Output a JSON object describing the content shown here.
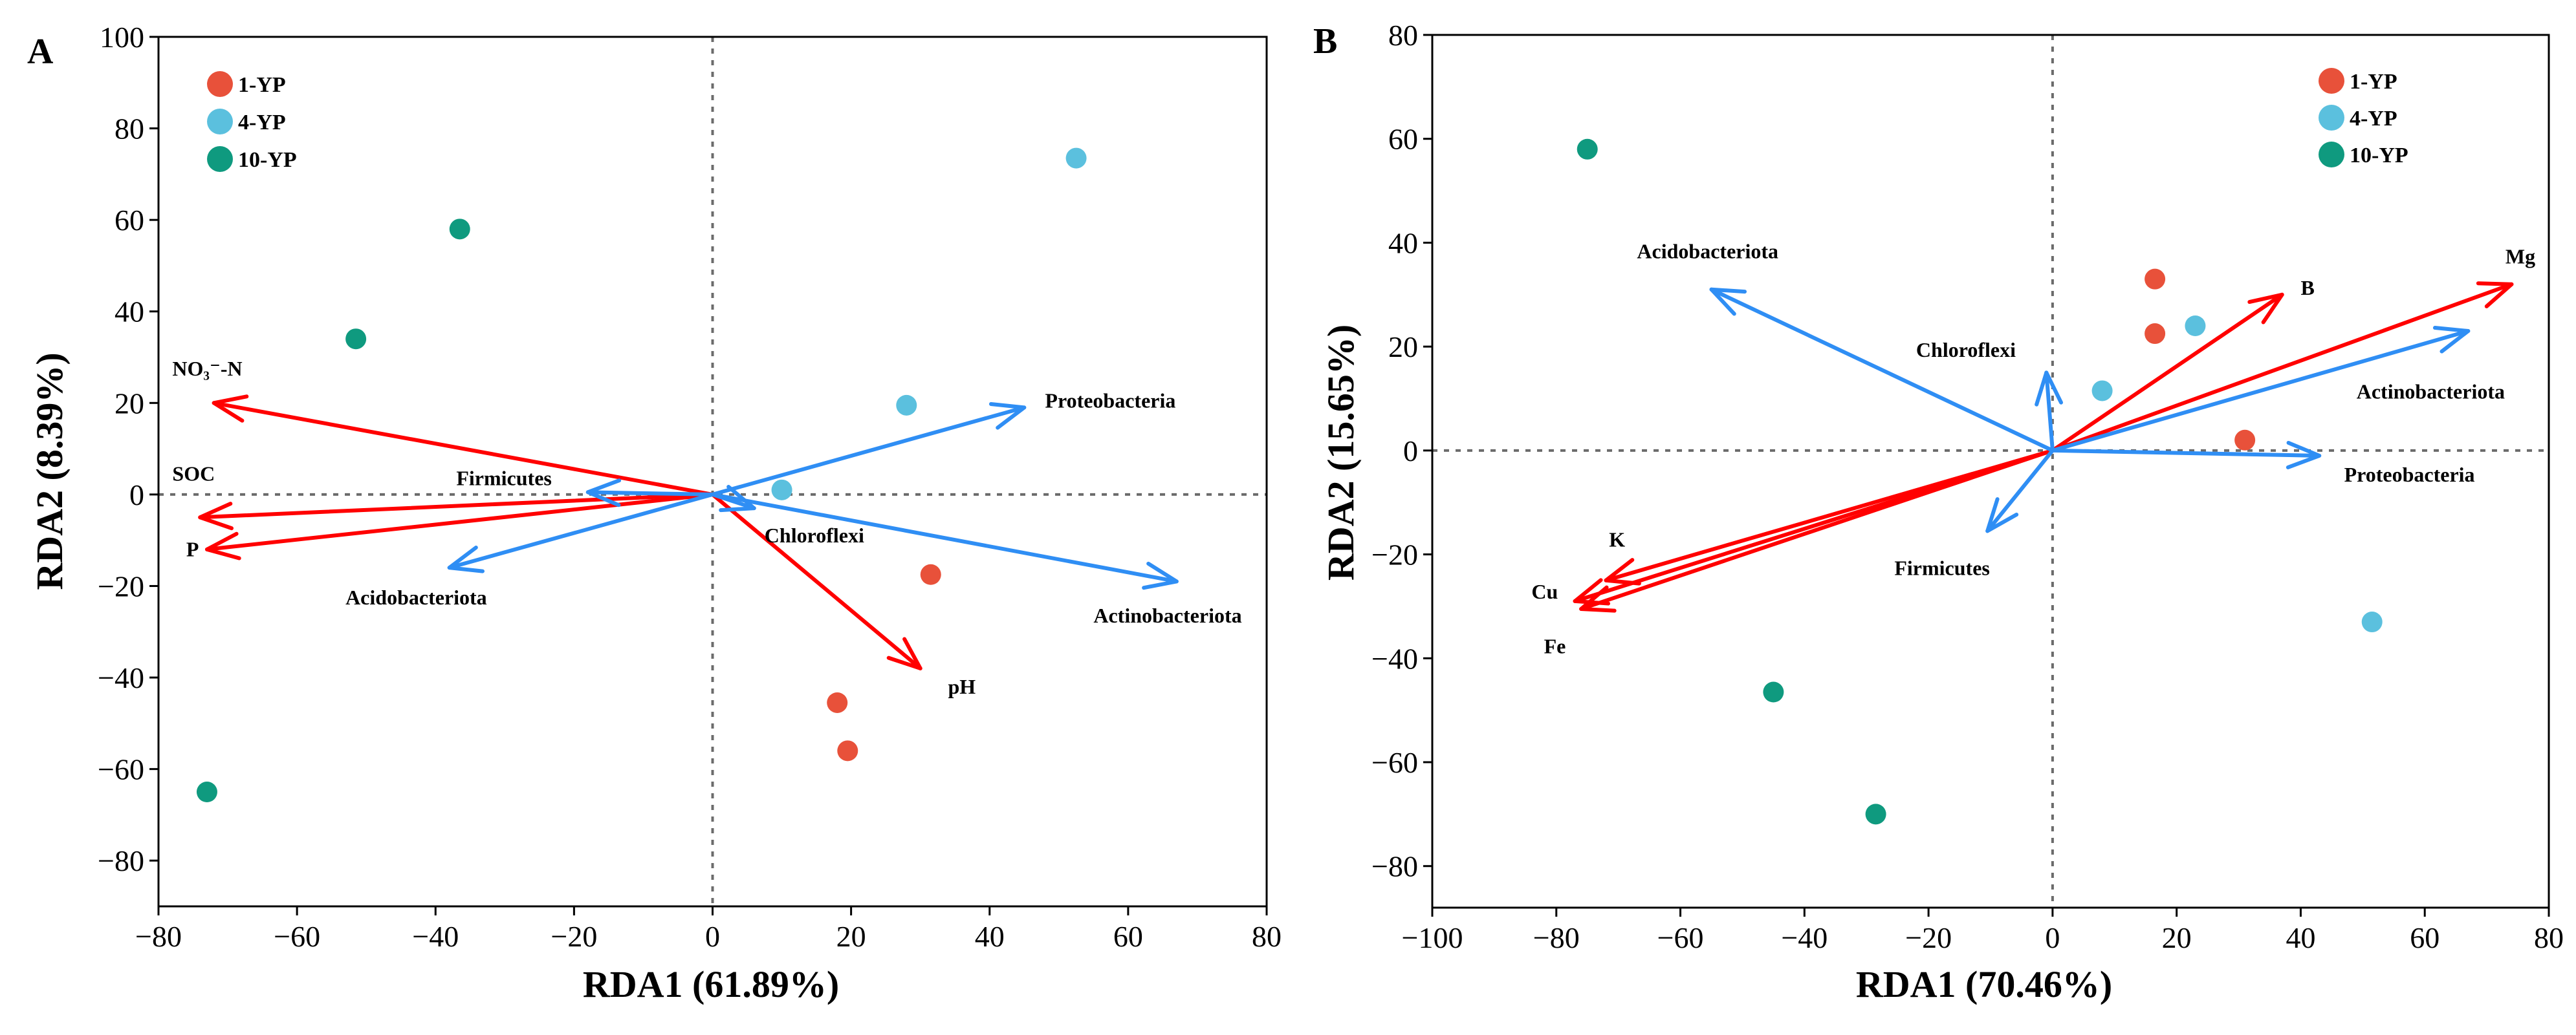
{
  "chart_data": [
    {
      "type": "scatter",
      "panel_label": "A",
      "xlabel": "RDA1 (61.89%)",
      "ylabel": "RDA2 (8.39%)",
      "xlim": [
        -80,
        80
      ],
      "ylim": [
        -90,
        100
      ],
      "xticks": [
        -80,
        -60,
        -40,
        -20,
        0,
        20,
        40,
        60,
        80
      ],
      "yticks": [
        -80,
        -60,
        -40,
        -20,
        0,
        20,
        40,
        60,
        80,
        100
      ],
      "legend_position": "top-left",
      "series": [
        {
          "name": "1-YP",
          "color": "#e8513a",
          "points": [
            [
              31.5,
              -17.5
            ],
            [
              18,
              -45.5
            ],
            [
              19.5,
              -56
            ]
          ]
        },
        {
          "name": "4-YP",
          "color": "#5bc0de",
          "points": [
            [
              52.5,
              73.5
            ],
            [
              28,
              19.5
            ],
            [
              10,
              1
            ]
          ]
        },
        {
          "name": "10-YP",
          "color": "#0f9a7f",
          "points": [
            [
              -36.5,
              58
            ],
            [
              -51.5,
              34
            ],
            [
              -73,
              -65
            ]
          ]
        }
      ],
      "vectors": [
        {
          "label": "NO₃⁻-N",
          "color": "#ff0000",
          "x": -72,
          "y": 20
        },
        {
          "label": "SOC",
          "color": "#ff0000",
          "x": -74,
          "y": -5
        },
        {
          "label": "P",
          "color": "#ff0000",
          "x": -73,
          "y": -12
        },
        {
          "label": "pH",
          "color": "#ff0000",
          "x": 30,
          "y": -38
        },
        {
          "label": "Proteobacteria",
          "color": "#2f8ef4",
          "x": 45,
          "y": 19
        },
        {
          "label": "Firmicutes",
          "color": "#2f8ef4",
          "x": -18,
          "y": 0.5
        },
        {
          "label": "Chloroflexi",
          "color": "#2f8ef4",
          "x": 6,
          "y": -3
        },
        {
          "label": "Acidobacteriota",
          "color": "#2f8ef4",
          "x": -38,
          "y": -16
        },
        {
          "label": "Actinobacteriota",
          "color": "#2f8ef4",
          "x": 67,
          "y": -19
        }
      ]
    },
    {
      "type": "scatter",
      "panel_label": "B",
      "xlabel": "RDA1 (70.46%)",
      "ylabel": "RDA2 (15.65%)",
      "xlim": [
        -100,
        80
      ],
      "ylim": [
        -88,
        80
      ],
      "xticks": [
        -100,
        -80,
        -60,
        -40,
        -20,
        0,
        20,
        40,
        60,
        80
      ],
      "yticks": [
        -80,
        -60,
        -40,
        -20,
        0,
        20,
        40,
        60,
        80
      ],
      "legend_position": "top-right",
      "series": [
        {
          "name": "1-YP",
          "color": "#e8513a",
          "points": [
            [
              16.5,
              33
            ],
            [
              16.5,
              22.5
            ],
            [
              31,
              2
            ]
          ]
        },
        {
          "name": "4-YP",
          "color": "#5bc0de",
          "points": [
            [
              23,
              24
            ],
            [
              8,
              11.5
            ],
            [
              51.5,
              -33
            ]
          ]
        },
        {
          "name": "10-YP",
          "color": "#0f9a7f",
          "points": [
            [
              -75,
              58
            ],
            [
              -45,
              -46.5
            ],
            [
              -28.5,
              -70
            ]
          ]
        }
      ],
      "vectors": [
        {
          "label": "Mg",
          "color": "#ff0000",
          "x": 74,
          "y": 32
        },
        {
          "label": "B",
          "color": "#ff0000",
          "x": 37,
          "y": 30
        },
        {
          "label": "K",
          "color": "#ff0000",
          "x": -72,
          "y": -25
        },
        {
          "label": "Cu",
          "color": "#ff0000",
          "x": -77,
          "y": -29
        },
        {
          "label": "Fe",
          "color": "#ff0000",
          "x": -76,
          "y": -30.5
        },
        {
          "label": "Acidobacteriota",
          "color": "#2f8ef4",
          "x": -55,
          "y": 31
        },
        {
          "label": "Chloroflexi",
          "color": "#2f8ef4",
          "x": -1,
          "y": 15
        },
        {
          "label": "Actinobacteriota",
          "color": "#2f8ef4",
          "x": 67,
          "y": 23
        },
        {
          "label": "Proteobacteria",
          "color": "#2f8ef4",
          "x": 43,
          "y": -1
        },
        {
          "label": "Firmicutes",
          "color": "#2f8ef4",
          "x": -10.5,
          "y": -15.5
        }
      ]
    }
  ]
}
